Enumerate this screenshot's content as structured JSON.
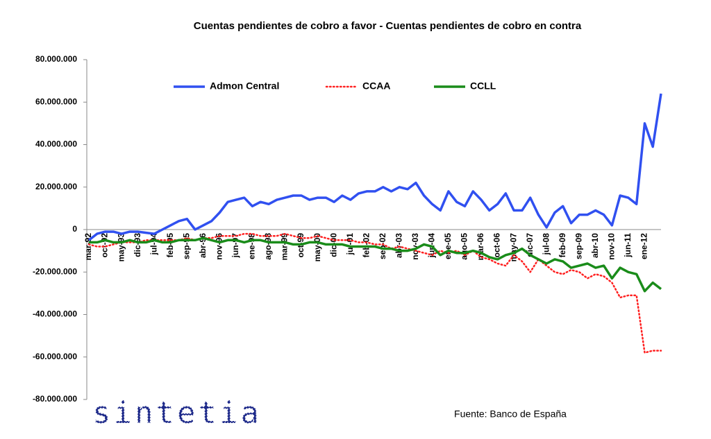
{
  "chart_data": {
    "type": "line",
    "title": "Cuentas pendientes de cobro a favor - Cuentas pendientes de cobro en contra",
    "source": "Fuente: Banco de España",
    "logo": "sintetia",
    "categories": [
      "mar-92",
      null,
      "oct-92",
      null,
      "may-93",
      null,
      "dic-93",
      null,
      "jul-94",
      null,
      "feb-95",
      null,
      "sep-95",
      null,
      "abr-96",
      null,
      "nov-96",
      null,
      "jun-97",
      null,
      "ene-98",
      null,
      "ago-98",
      null,
      "mar-99",
      null,
      "oct-99",
      null,
      "may-00",
      null,
      "dic-00",
      null,
      "jul-01",
      null,
      "feb-02",
      null,
      "sep-02",
      null,
      "abr-03",
      null,
      "nov-03",
      null,
      "jun-04",
      null,
      "ene-05",
      null,
      "ago-05",
      null,
      "mar-06",
      null,
      "oct-06",
      null,
      "may-07",
      null,
      "dic-07",
      null,
      "jul-08",
      null,
      "feb-09",
      null,
      "sep-09",
      null,
      "abr-10",
      null,
      "nov-10",
      null,
      "jun-11",
      null,
      "ene-12",
      null,
      null
    ],
    "series": [
      {
        "name": "Admon Central",
        "color": "#3050f0",
        "style": "solid",
        "values": [
          -5000000.0,
          -2000000.0,
          -1000000.0,
          -1000000.0,
          -2000000.0,
          -1000000.0,
          -1000000.0,
          -1500000.0,
          -2000000.0,
          0,
          2000000.0,
          4000000.0,
          5000000.0,
          0,
          2000000.0,
          4000000.0,
          8000000.0,
          13000000.0,
          14000000.0,
          15000000.0,
          11000000.0,
          13000000.0,
          12000000.0,
          14000000.0,
          15000000.0,
          16000000.0,
          16000000.0,
          14000000.0,
          15000000.0,
          15000000.0,
          13000000.0,
          16000000.0,
          14000000.0,
          17000000.0,
          18000000.0,
          18000000.0,
          20000000.0,
          18000000.0,
          20000000.0,
          19000000.0,
          22000000.0,
          16000000.0,
          12000000.0,
          9000000.0,
          18000000.0,
          13000000.0,
          11000000.0,
          18000000.0,
          14000000.0,
          9000000.0,
          12000000.0,
          17000000.0,
          9000000.0,
          9000000.0,
          15000000.0,
          7000000.0,
          1000000.0,
          8000000.0,
          11000000.0,
          3000000.0,
          7000000.0,
          7000000.0,
          9000000.0,
          7000000.0,
          2000000.0,
          16000000.0,
          15000000.0,
          12000000.0,
          50000000.0,
          39000000.0,
          64000000.0
        ]
      },
      {
        "name": "CCAA",
        "color": "#ff2020",
        "style": "dotted",
        "values": [
          -7000000.0,
          -8000000.0,
          -8000000.0,
          -7000000.0,
          -6000000.0,
          -6000000.0,
          -6000000.0,
          -5000000.0,
          -5000000.0,
          -5000000.0,
          -5000000.0,
          -5000000.0,
          -4000000.0,
          -5000000.0,
          -4000000.0,
          -4000000.0,
          -3000000.0,
          -3000000.0,
          -3000000.0,
          -2000000.0,
          -2000000.0,
          -3000000.0,
          -3000000.0,
          -3000000.0,
          -2000000.0,
          -3000000.0,
          -4000000.0,
          -4000000.0,
          -3000000.0,
          -4000000.0,
          -5000000.0,
          -5000000.0,
          -5000000.0,
          -6000000.0,
          -6000000.0,
          -7000000.0,
          -7000000.0,
          -9000000.0,
          -8000000.0,
          -9000000.0,
          -10000000.0,
          -11000000.0,
          -12000000.0,
          -10000000.0,
          -11000000.0,
          -10000000.0,
          -12000000.0,
          -10000000.0,
          -13000000.0,
          -14000000.0,
          -16000000.0,
          -17000000.0,
          -12000000.0,
          -15000000.0,
          -20000000.0,
          -14000000.0,
          -17000000.0,
          -20000000.0,
          -21000000.0,
          -19000000.0,
          -20000000.0,
          -23000000.0,
          -21000000.0,
          -22000000.0,
          -25000000.0,
          -32000000.0,
          -31000000.0,
          -31000000.0,
          -58000000.0,
          -57000000.0,
          -57000000.0
        ]
      },
      {
        "name": "CCLL",
        "color": "#1a8c1a",
        "style": "solid",
        "values": [
          -6000000.0,
          -6000000.0,
          -5000000.0,
          -6000000.0,
          -6000000.0,
          -5000000.0,
          -6000000.0,
          -6000000.0,
          -5000000.0,
          -6000000.0,
          -6000000.0,
          -5000000.0,
          -5000000.0,
          -5000000.0,
          -4000000.0,
          -5000000.0,
          -6000000.0,
          -5000000.0,
          -5000000.0,
          -6000000.0,
          -5000000.0,
          -5000000.0,
          -6000000.0,
          -6000000.0,
          -6000000.0,
          -7000000.0,
          -7000000.0,
          -6000000.0,
          -6000000.0,
          -7000000.0,
          -7000000.0,
          -7000000.0,
          -8000000.0,
          -8000000.0,
          -8000000.0,
          -8000000.0,
          -9000000.0,
          -9000000.0,
          -10000000.0,
          -10000000.0,
          -9000000.0,
          -7000000.0,
          -8000000.0,
          -12000000.0,
          -10000000.0,
          -11000000.0,
          -11000000.0,
          -10000000.0,
          -11000000.0,
          -13000000.0,
          -14000000.0,
          -12000000.0,
          -11000000.0,
          -9000000.0,
          -12000000.0,
          -14000000.0,
          -16000000.0,
          -14000000.0,
          -15000000.0,
          -18000000.0,
          -17000000.0,
          -16000000.0,
          -18000000.0,
          -17000000.0,
          -23000000.0,
          -18000000.0,
          -20000000.0,
          -21000000.0,
          -29000000.0,
          -25000000.0,
          -28000000.0
        ]
      }
    ],
    "ylim": [
      -80000000,
      80000000
    ],
    "yticks": [
      {
        "value": 80000000,
        "label": "80.000.000"
      },
      {
        "value": 60000000,
        "label": "60.000.000"
      },
      {
        "value": 40000000,
        "label": "40.000.000"
      },
      {
        "value": 20000000,
        "label": "20.000.000"
      },
      0,
      {
        "value": -20000000,
        "label": "-20.000.000"
      },
      {
        "value": -40000000,
        "label": "-40.000.000"
      },
      {
        "value": -60000000,
        "label": "-60.000.000"
      },
      {
        "value": -80000000,
        "label": "-80.000.000"
      }
    ],
    "grid": false,
    "legend": "top"
  }
}
